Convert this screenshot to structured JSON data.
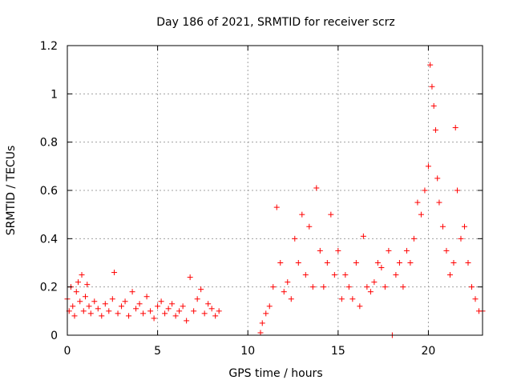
{
  "chart_data": {
    "type": "scatter",
    "title": "Day 186 of 2021, SRMTID for receiver scrz",
    "xlabel": "GPS time / hours",
    "ylabel": "SRMTID / TECUs",
    "xlim": [
      0,
      23
    ],
    "ylim": [
      0,
      1.2
    ],
    "xticks": [
      0,
      5,
      10,
      15,
      20
    ],
    "xtick_labels": [
      "0",
      "5",
      "10",
      "15",
      "20"
    ],
    "yticks": [
      0,
      0.2,
      0.4,
      0.6,
      0.8,
      1,
      1.2
    ],
    "ytick_labels": [
      "0",
      "0.2",
      "0.4",
      "0.6",
      "0.8",
      "1",
      "1.2"
    ],
    "grid": true,
    "marker": "+",
    "marker_color": "#ff0000",
    "series": [
      {
        "name": "SRMTID",
        "points": [
          [
            0.0,
            0.15
          ],
          [
            0.1,
            0.1
          ],
          [
            0.2,
            0.2
          ],
          [
            0.3,
            0.12
          ],
          [
            0.4,
            0.08
          ],
          [
            0.5,
            0.18
          ],
          [
            0.6,
            0.22
          ],
          [
            0.7,
            0.14
          ],
          [
            0.8,
            0.25
          ],
          [
            0.9,
            0.1
          ],
          [
            1.0,
            0.16
          ],
          [
            1.1,
            0.21
          ],
          [
            1.2,
            0.12
          ],
          [
            1.3,
            0.09
          ],
          [
            1.5,
            0.14
          ],
          [
            1.7,
            0.11
          ],
          [
            1.9,
            0.08
          ],
          [
            2.1,
            0.13
          ],
          [
            2.3,
            0.1
          ],
          [
            2.5,
            0.15
          ],
          [
            2.6,
            0.26
          ],
          [
            2.8,
            0.09
          ],
          [
            3.0,
            0.12
          ],
          [
            3.2,
            0.14
          ],
          [
            3.4,
            0.08
          ],
          [
            3.6,
            0.18
          ],
          [
            3.8,
            0.11
          ],
          [
            4.0,
            0.13
          ],
          [
            4.2,
            0.09
          ],
          [
            4.4,
            0.16
          ],
          [
            4.6,
            0.1
          ],
          [
            4.8,
            0.07
          ],
          [
            5.0,
            0.12
          ],
          [
            5.2,
            0.14
          ],
          [
            5.4,
            0.09
          ],
          [
            5.6,
            0.11
          ],
          [
            5.8,
            0.13
          ],
          [
            6.0,
            0.08
          ],
          [
            6.2,
            0.1
          ],
          [
            6.4,
            0.12
          ],
          [
            6.6,
            0.06
          ],
          [
            6.8,
            0.24
          ],
          [
            7.0,
            0.1
          ],
          [
            7.2,
            0.15
          ],
          [
            7.4,
            0.19
          ],
          [
            7.6,
            0.09
          ],
          [
            7.8,
            0.13
          ],
          [
            8.0,
            0.11
          ],
          [
            8.2,
            0.08
          ],
          [
            8.4,
            0.1
          ],
          [
            10.7,
            0.01
          ],
          [
            10.8,
            0.05
          ],
          [
            11.0,
            0.09
          ],
          [
            11.2,
            0.12
          ],
          [
            11.4,
            0.2
          ],
          [
            11.6,
            0.53
          ],
          [
            11.8,
            0.3
          ],
          [
            12.0,
            0.18
          ],
          [
            12.2,
            0.22
          ],
          [
            12.4,
            0.15
          ],
          [
            12.6,
            0.4
          ],
          [
            12.8,
            0.3
          ],
          [
            13.0,
            0.5
          ],
          [
            13.2,
            0.25
          ],
          [
            13.4,
            0.45
          ],
          [
            13.6,
            0.2
          ],
          [
            13.8,
            0.61
          ],
          [
            14.0,
            0.35
          ],
          [
            14.2,
            0.2
          ],
          [
            14.4,
            0.3
          ],
          [
            14.6,
            0.5
          ],
          [
            14.8,
            0.25
          ],
          [
            15.0,
            0.35
          ],
          [
            15.2,
            0.15
          ],
          [
            15.4,
            0.25
          ],
          [
            15.6,
            0.2
          ],
          [
            15.8,
            0.15
          ],
          [
            16.0,
            0.3
          ],
          [
            16.2,
            0.12
          ],
          [
            16.4,
            0.41
          ],
          [
            16.6,
            0.2
          ],
          [
            16.8,
            0.18
          ],
          [
            17.0,
            0.22
          ],
          [
            17.2,
            0.3
          ],
          [
            17.4,
            0.28
          ],
          [
            17.6,
            0.2
          ],
          [
            17.8,
            0.35
          ],
          [
            18.0,
            0.0
          ],
          [
            18.2,
            0.25
          ],
          [
            18.4,
            0.3
          ],
          [
            18.6,
            0.2
          ],
          [
            18.8,
            0.35
          ],
          [
            19.0,
            0.3
          ],
          [
            19.2,
            0.4
          ],
          [
            19.4,
            0.55
          ],
          [
            19.6,
            0.5
          ],
          [
            19.8,
            0.6
          ],
          [
            20.0,
            0.7
          ],
          [
            20.1,
            1.12
          ],
          [
            20.2,
            1.03
          ],
          [
            20.3,
            0.95
          ],
          [
            20.4,
            0.85
          ],
          [
            20.5,
            0.65
          ],
          [
            20.6,
            0.55
          ],
          [
            20.8,
            0.45
          ],
          [
            21.0,
            0.35
          ],
          [
            21.2,
            0.25
          ],
          [
            21.4,
            0.3
          ],
          [
            21.5,
            0.86
          ],
          [
            21.6,
            0.6
          ],
          [
            21.8,
            0.4
          ],
          [
            22.0,
            0.45
          ],
          [
            22.2,
            0.3
          ],
          [
            22.4,
            0.2
          ],
          [
            22.6,
            0.15
          ],
          [
            22.8,
            0.1
          ],
          [
            23.0,
            0.1
          ]
        ]
      }
    ]
  }
}
